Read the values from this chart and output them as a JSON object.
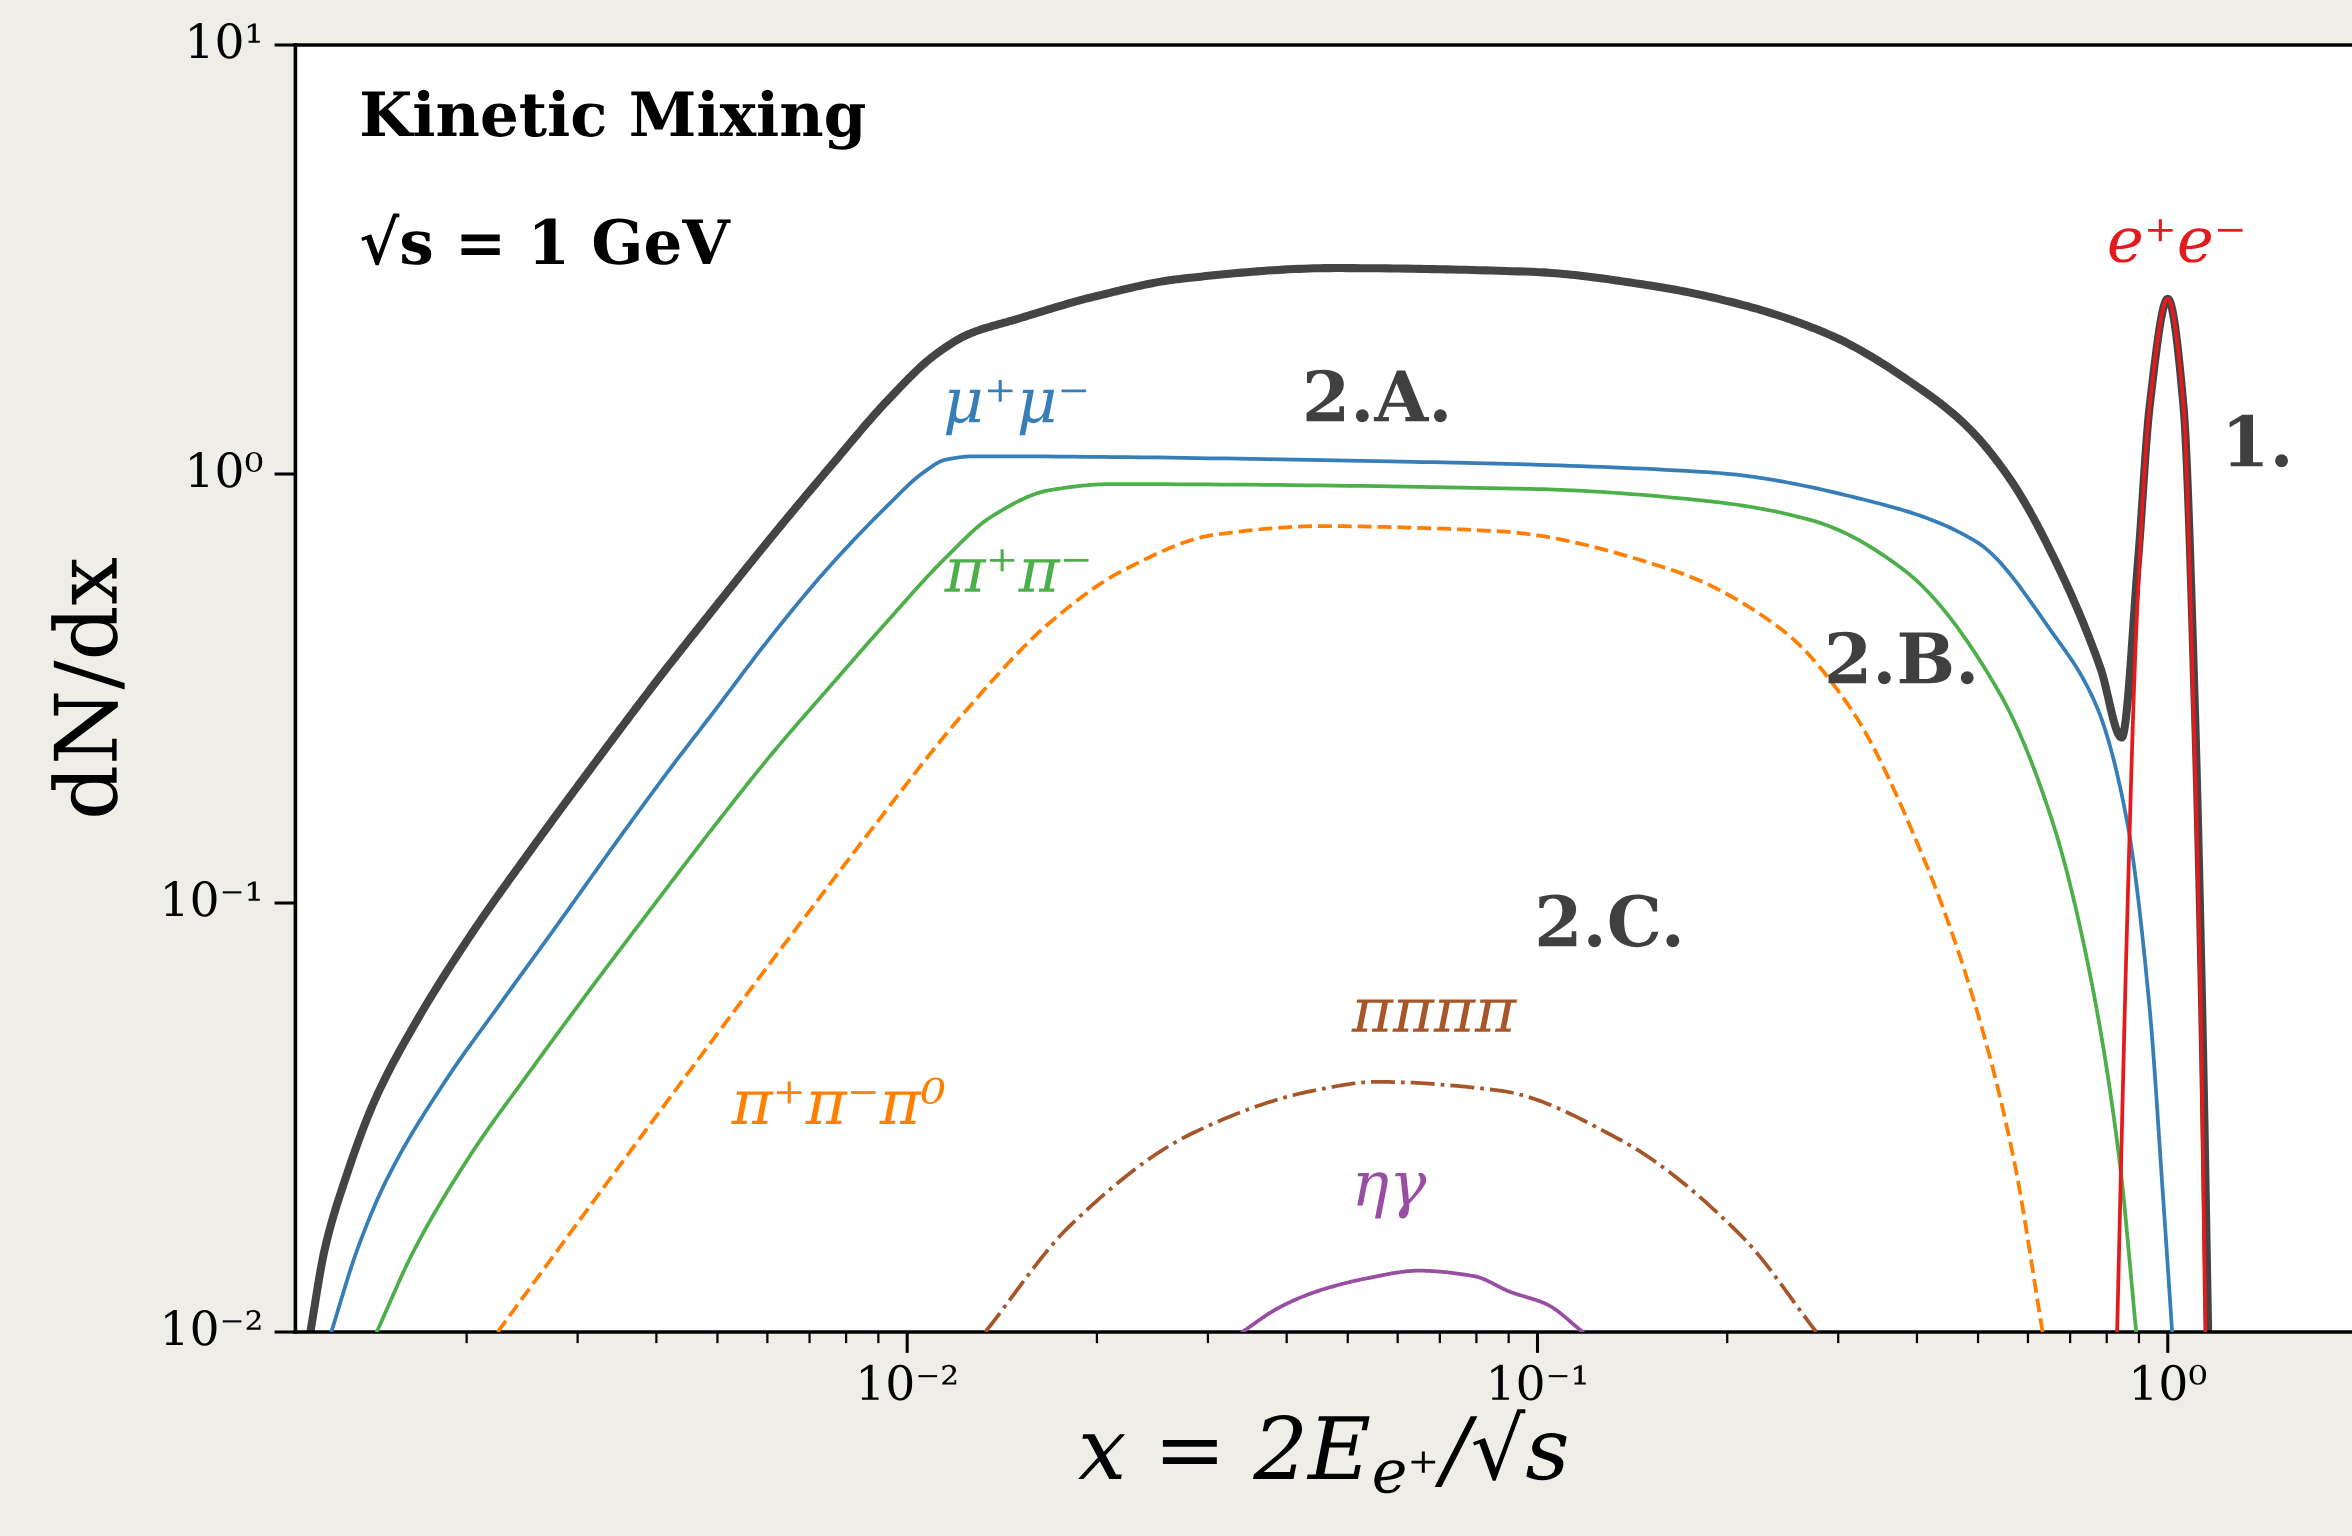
{
  "chart_data": {
    "type": "line",
    "title": "Kinetic Mixing",
    "subtitle": "√s = 1 GeV",
    "xlabel": "x = 2E$_{e⁺}$/√s",
    "ylabel": "dN/dx",
    "log": "xy",
    "xlim": [
      0.00107,
      1.96
    ],
    "ylim": [
      0.01,
      10
    ],
    "xticks": [
      {
        "value": 0.01,
        "label": "10⁻²"
      },
      {
        "value": 0.1,
        "label": "10⁻¹"
      },
      {
        "value": 1,
        "label": "10⁰"
      }
    ],
    "yticks": [
      {
        "value": 0.01,
        "label": "10⁻²"
      },
      {
        "value": 0.1,
        "label": "10⁻¹"
      },
      {
        "value": 1,
        "label": "10⁰"
      },
      {
        "value": 10,
        "label": "10¹"
      }
    ],
    "grid": false,
    "legend": false,
    "marker": "none",
    "line_style": "solid",
    "series": [
      {
        "color": "#444444",
        "x": [
          0.00113,
          0.00119,
          0.00129,
          0.00143,
          0.00165,
          0.00204,
          0.00252,
          0.00318,
          0.00401,
          0.00496,
          0.00612,
          0.00755,
          0.00933,
          0.01104,
          0.01253,
          0.01483,
          0.02,
          0.0271,
          0.0477,
          0.0978,
          0.151,
          0.209,
          0.291,
          0.405,
          0.478,
          0.562,
          0.662,
          0.782,
          0.845,
          0.898,
          0.936,
          1.0,
          1.059,
          1.104,
          1.134,
          1.159
        ],
        "values": [
          0.01,
          0.0155,
          0.0232,
          0.0347,
          0.0518,
          0.0851,
          0.132,
          0.21,
          0.33,
          0.49,
          0.719,
          1.04,
          1.49,
          1.89,
          2.12,
          2.29,
          2.6,
          2.85,
          3.02,
          2.96,
          2.75,
          2.49,
          2.11,
          1.58,
          1.3,
          0.973,
          0.631,
          0.353,
          0.243,
          0.641,
          1.44,
          2.56,
          1.44,
          0.286,
          0.0566,
          0.01
        ]
      },
      {
        "name": "μ⁺μ⁻",
        "color": "#377eb8",
        "x": [
          0.00122,
          0.00134,
          0.00149,
          0.00184,
          0.00227,
          0.0028,
          0.00346,
          0.0042,
          0.00496,
          0.00612,
          0.00755,
          0.00933,
          0.01059,
          0.01151,
          0.0128,
          0.0586,
          0.186,
          0.352,
          0.497,
          0.655,
          0.772,
          0.861,
          0.936,
          0.983,
          1.016
        ],
        "values": [
          0.01,
          0.0155,
          0.0225,
          0.038,
          0.0587,
          0.0899,
          0.139,
          0.205,
          0.282,
          0.423,
          0.612,
          0.847,
          1.006,
          1.08,
          1.1,
          1.07,
          1.01,
          0.85,
          0.695,
          0.428,
          0.286,
          0.156,
          0.0566,
          0.0206,
          0.01
        ]
      },
      {
        "name": "π⁺π⁻",
        "color": "#4daf4a",
        "x": [
          0.00144,
          0.00165,
          0.00204,
          0.00252,
          0.00312,
          0.00385,
          0.00501,
          0.00612,
          0.00755,
          0.00933,
          0.01151,
          0.01363,
          0.01683,
          0.021,
          0.0978,
          0.186,
          0.273,
          0.381,
          0.54,
          0.655,
          0.751,
          0.838,
          0.891
        ],
        "values": [
          0.01,
          0.0155,
          0.0262,
          0.0405,
          0.0621,
          0.0935,
          0.155,
          0.224,
          0.32,
          0.456,
          0.638,
          0.797,
          0.917,
          0.947,
          0.923,
          0.865,
          0.779,
          0.598,
          0.31,
          0.156,
          0.0693,
          0.0252,
          0.01
        ]
      },
      {
        "name": "π⁺π⁻π⁰",
        "color": "#ff7f00",
        "line_style": "dashed",
        "x": [
          0.00224,
          0.00374,
          0.00515,
          0.00708,
          0.00895,
          0.01227,
          0.01683,
          0.0221,
          0.0308,
          0.0453,
          0.086,
          0.163,
          0.244,
          0.313,
          0.41,
          0.497,
          0.57,
          0.633
        ],
        "values": [
          0.01,
          0.0279,
          0.0526,
          0.098,
          0.154,
          0.276,
          0.45,
          0.598,
          0.722,
          0.756,
          0.736,
          0.598,
          0.434,
          0.286,
          0.127,
          0.0566,
          0.0252,
          0.01
        ]
      },
      {
        "name": "ππππ",
        "color": "#a65628",
        "line_style": "dashdot",
        "x": [
          0.0133,
          0.0182,
          0.0284,
          0.0444,
          0.0555,
          0.0865,
          0.135,
          0.211,
          0.277
        ],
        "values": [
          0.01,
          0.0178,
          0.0291,
          0.0366,
          0.0383,
          0.0366,
          0.0281,
          0.0167,
          0.01
        ]
      },
      {
        "name": "ηγ",
        "color": "#984ea3",
        "x": [
          0.034,
          0.0389,
          0.0444,
          0.0531,
          0.0648,
          0.0792,
          0.0906,
          0.1035,
          0.118
        ],
        "values": [
          0.01,
          0.0114,
          0.0124,
          0.0133,
          0.0139,
          0.0135,
          0.0124,
          0.0116,
          0.01
        ]
      },
      {
        "name": "e⁺e⁻",
        "color": "#e41a1c",
        "x": [
          0.831,
          0.861,
          0.891,
          0.936,
          1.0,
          1.059,
          1.098,
          1.128,
          1.147
        ],
        "values": [
          0.01,
          0.0849,
          0.428,
          1.44,
          2.56,
          1.44,
          0.286,
          0.0566,
          0.01
        ]
      }
    ],
    "annotations": [
      "2.A.",
      "2.B.",
      "2.C.",
      "1."
    ]
  }
}
